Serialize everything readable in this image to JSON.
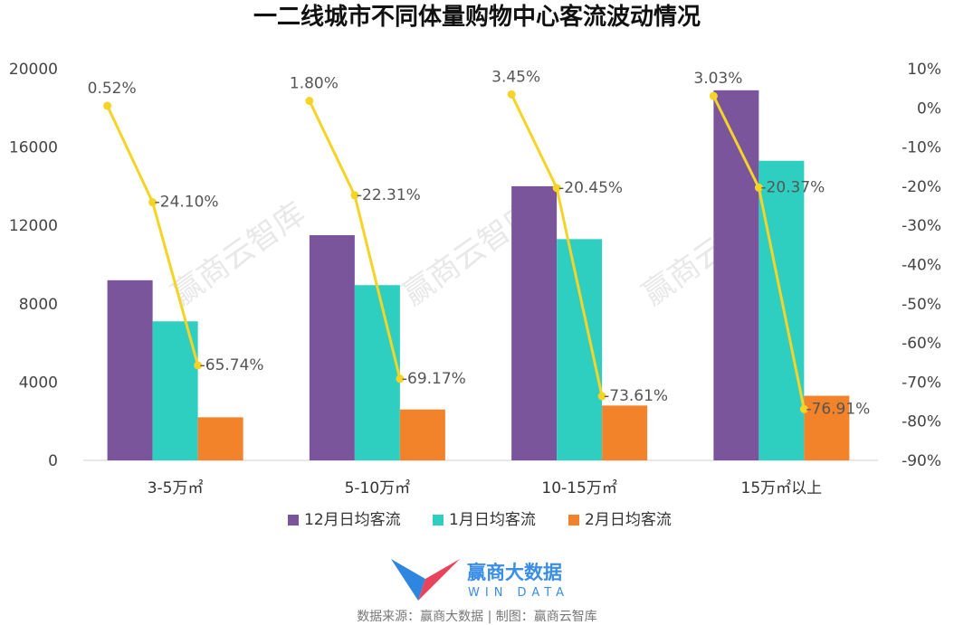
{
  "chart_data": {
    "type": "bar",
    "title": "一二线城市不同体量购物中心客流波动情况",
    "categories": [
      "3-5万㎡",
      "5-10万㎡",
      "10-15万㎡",
      "15万㎡以上"
    ],
    "series": [
      {
        "name": "12月日均客流",
        "type": "bar",
        "axis": "left",
        "color": "#7b559c",
        "values": [
          9200,
          11500,
          14000,
          18900
        ]
      },
      {
        "name": "1月日均客流",
        "type": "bar",
        "axis": "left",
        "color": "#2ecfc0",
        "values": [
          7100,
          8950,
          11300,
          15300
        ]
      },
      {
        "name": "2月日均客流",
        "type": "bar",
        "axis": "left",
        "color": "#f2832a",
        "values": [
          2200,
          2600,
          2800,
          3300
        ]
      }
    ],
    "lines": [
      {
        "axis": "right",
        "color": "#f5d327",
        "points": [
          {
            "values": [
              0.52,
              -24.1,
              -65.74
            ],
            "labels": [
              "0.52%",
              "-24.10%",
              "-65.74%"
            ]
          },
          {
            "values": [
              1.8,
              -22.31,
              -69.17
            ],
            "labels": [
              "1.80%",
              "-22.31%",
              "-69.17%"
            ]
          },
          {
            "values": [
              3.45,
              -20.45,
              -73.61
            ],
            "labels": [
              "3.45%",
              "-20.45%",
              "-73.61%"
            ]
          },
          {
            "values": [
              3.03,
              -20.37,
              -76.91
            ],
            "labels": [
              "3.03%",
              "-20.37%",
              "-76.91%"
            ]
          }
        ]
      }
    ],
    "yleft": {
      "min": 0,
      "max": 20000,
      "ticks": [
        "0",
        "4000",
        "8000",
        "12000",
        "16000",
        "20000"
      ]
    },
    "yright": {
      "min": -90,
      "max": 10,
      "ticks": [
        "10%",
        "0%",
        "-10%",
        "-20%",
        "-30%",
        "-40%",
        "-50%",
        "-60%",
        "-70%",
        "-80%",
        "-90%"
      ]
    },
    "legend": "bottom",
    "grid": false
  },
  "watermark": "赢商云智库",
  "brand": {
    "name": "赢商大数据",
    "sub": "WIN DATA"
  },
  "source": "数据来源：赢商大数据 | 制图：赢商云智库"
}
